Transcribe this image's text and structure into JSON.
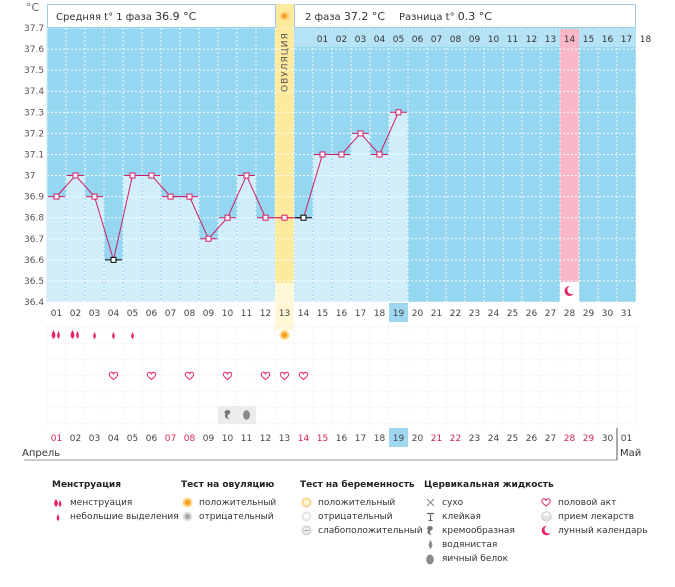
{
  "header": {
    "unit": "°C",
    "phase1_label": "Средняя t° 1 фаза",
    "phase1_value": "36.9 °C",
    "phase2_label": "2 фаза",
    "phase2_value": "37.2 °C",
    "diff_label": "Разница t°",
    "diff_value": "0.3 °C"
  },
  "ovulation_label": "ОВУЛЯЦИЯ",
  "colors": {
    "sky": "#95d6f0",
    "bar": "#d1eefa",
    "ovulation": "#fdea9c",
    "pink": "#f9b7c8",
    "line": "#d21e67",
    "menstruation": "#e8226c",
    "highlight": "#9fd6f0"
  },
  "chart_data": {
    "type": "line",
    "ylim": [
      36.4,
      37.7
    ],
    "y_ticks": [
      "36.4",
      "36.5",
      "36.6",
      "36.7",
      "36.8",
      "36.9",
      "37",
      "37.1",
      "37.2",
      "37.3",
      "37.4",
      "37.5",
      "37.6",
      "37.7"
    ],
    "x": [
      "01",
      "02",
      "03",
      "04",
      "05",
      "06",
      "07",
      "08",
      "09",
      "10",
      "11",
      "12",
      "13",
      "14",
      "15",
      "16",
      "17",
      "18",
      "19",
      "20",
      "21",
      "22",
      "23",
      "24",
      "25",
      "26",
      "27",
      "28",
      "29",
      "30",
      "31"
    ],
    "temperatures": [
      36.9,
      37.0,
      36.9,
      36.6,
      37.0,
      37.0,
      36.9,
      36.9,
      36.7,
      36.8,
      37.0,
      36.8,
      36.8,
      36.8,
      37.1,
      37.1,
      37.2,
      37.1,
      37.3,
      null,
      null,
      null,
      null,
      null,
      null,
      null,
      null,
      null,
      null,
      null,
      null
    ],
    "top_cycle_days": [
      "01",
      "02",
      "03",
      "04",
      "05",
      "06",
      "07",
      "08",
      "09",
      "10",
      "11",
      "12",
      "13",
      "14",
      "15",
      "16",
      "17",
      "18"
    ],
    "ovulation_day": "13",
    "current_day": "19",
    "month_start": "Апрель",
    "month_end": "Май",
    "calendar_days": [
      "01",
      "02",
      "03",
      "04",
      "05",
      "06",
      "07",
      "08",
      "09",
      "10",
      "11",
      "12",
      "13",
      "14",
      "15",
      "16",
      "17",
      "18",
      "19",
      "20",
      "21",
      "22",
      "23",
      "24",
      "25",
      "26",
      "27",
      "28",
      "29",
      "30",
      "01"
    ],
    "red_days": [
      "01",
      "07",
      "08",
      "14",
      "15",
      "21",
      "22",
      "28",
      "29"
    ],
    "menstruation": [
      2,
      2,
      1,
      1,
      1
    ],
    "intercourse_days": [
      "04",
      "06",
      "08",
      "10",
      "12",
      "13",
      "14"
    ],
    "cervical_days": [
      "10",
      "11"
    ]
  },
  "legend": {
    "menstruation": {
      "title": "Менструация",
      "items": [
        "менструация",
        "небольшие выделения"
      ]
    },
    "ovulation_test": {
      "title": "Тест на овуляцию",
      "items": [
        "положительный",
        "отрицательный"
      ]
    },
    "pregnancy_test": {
      "title": "Тест на беременность",
      "items": [
        "положительный",
        "отрицательный",
        "слабоположительный"
      ]
    },
    "cervical_fluid": {
      "title": "Цервикальная жидкость",
      "items": [
        "сухо",
        "клейкая",
        "кремообразная",
        "водянистая",
        "яичный белок"
      ]
    },
    "other": {
      "items": [
        "половой акт",
        "прием лекарств",
        "лунный календарь"
      ]
    }
  }
}
